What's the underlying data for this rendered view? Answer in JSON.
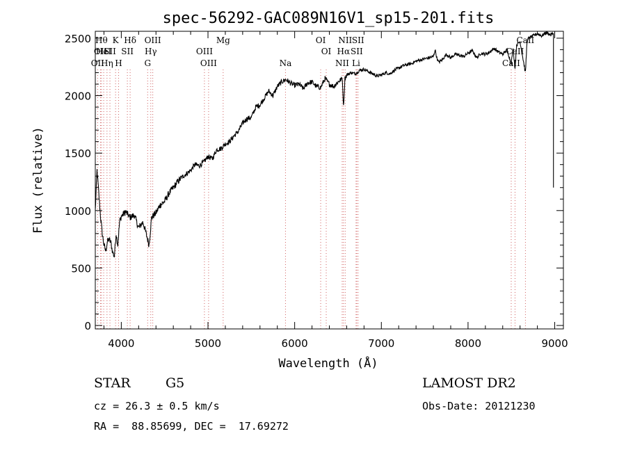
{
  "chart_data": {
    "type": "line",
    "title": "spec-56292-GAC089N16V1_sp15-201.fits",
    "xlabel": "Wavelength (Å)",
    "ylabel": "Flux (relative)",
    "xlim": [
      3700,
      9100
    ],
    "ylim": [
      -30,
      2560
    ],
    "xticks": [
      4000,
      5000,
      6000,
      7000,
      8000,
      9000
    ],
    "yticks": [
      0,
      500,
      1000,
      1500,
      2000,
      2500
    ],
    "series": [
      {
        "x": [
          3700,
          3720,
          3740,
          3760,
          3780,
          3800,
          3820,
          3840,
          3860,
          3880,
          3900,
          3920,
          3940,
          3960,
          3980,
          4000,
          4050,
          4100,
          4150,
          4200,
          4250,
          4300,
          4320,
          4350,
          4400,
          4450,
          4500,
          4550,
          4600,
          4650,
          4700,
          4750,
          4800,
          4850,
          4900,
          4950,
          5000,
          5050,
          5100,
          5150,
          5200,
          5250,
          5300,
          5350,
          5400,
          5450,
          5500,
          5550,
          5600,
          5650,
          5700,
          5750,
          5800,
          5850,
          5900,
          5950,
          6000,
          6050,
          6100,
          6150,
          6200,
          6250,
          6300,
          6350,
          6400,
          6450,
          6500,
          6550,
          6563,
          6580,
          6600,
          6650,
          6700,
          6750,
          6800,
          6850,
          6900,
          6950,
          7000,
          7050,
          7100,
          7150,
          7200,
          7250,
          7300,
          7350,
          7400,
          7450,
          7500,
          7550,
          7600,
          7620,
          7640,
          7660,
          7700,
          7750,
          7800,
          7850,
          7900,
          7950,
          8000,
          8050,
          8100,
          8150,
          8200,
          8250,
          8300,
          8350,
          8400,
          8450,
          8498,
          8520,
          8542,
          8560,
          8600,
          8662,
          8680,
          8700,
          8750,
          8800,
          8850,
          8900,
          8950,
          8980
        ],
        "y": [
          1000,
          1350,
          1150,
          950,
          800,
          700,
          650,
          730,
          750,
          720,
          640,
          600,
          800,
          700,
          900,
          950,
          990,
          940,
          960,
          850,
          900,
          760,
          700,
          940,
          980,
          1050,
          1080,
          1150,
          1200,
          1250,
          1290,
          1320,
          1350,
          1400,
          1390,
          1420,
          1470,
          1450,
          1530,
          1540,
          1580,
          1600,
          1650,
          1690,
          1760,
          1800,
          1810,
          1900,
          1920,
          1980,
          2040,
          2000,
          2080,
          2120,
          2140,
          2110,
          2090,
          2100,
          2060,
          2110,
          2120,
          2080,
          2070,
          2150,
          2100,
          2080,
          2120,
          2150,
          1900,
          2150,
          2180,
          2200,
          2190,
          2220,
          2230,
          2210,
          2190,
          2170,
          2180,
          2200,
          2190,
          2220,
          2240,
          2260,
          2270,
          2280,
          2300,
          2310,
          2320,
          2330,
          2340,
          2400,
          2330,
          2290,
          2310,
          2360,
          2330,
          2360,
          2350,
          2340,
          2370,
          2390,
          2330,
          2370,
          2360,
          2380,
          2410,
          2380,
          2360,
          2400,
          2280,
          2420,
          2230,
          2440,
          2470,
          2200,
          2470,
          2500,
          2520,
          2540,
          2520,
          2550,
          2530,
          2540
        ]
      }
    ],
    "lines": [
      {
        "wl": 3727,
        "label": "OII",
        "row": 2
      },
      {
        "wl": 3760,
        "label": "OII",
        "row": 1
      },
      {
        "wl": 3771,
        "label": "Hθ",
        "row": 0
      },
      {
        "wl": 3797,
        "label": "HeI",
        "row": 1
      },
      {
        "wl": 3835,
        "label": "Hη",
        "row": 2
      },
      {
        "wl": 3869,
        "label": "SII",
        "row": 1
      },
      {
        "wl": 3934,
        "label": "K",
        "row": 0
      },
      {
        "wl": 3969,
        "label": "H",
        "row": 2
      },
      {
        "wl": 4070,
        "label": "SII",
        "row": 1
      },
      {
        "wl": 4102,
        "label": "Hδ",
        "row": 0
      },
      {
        "wl": 4304,
        "label": "G",
        "row": 2
      },
      {
        "wl": 4340,
        "label": "Hγ",
        "row": 1
      },
      {
        "wl": 4363,
        "label": "OIII",
        "row": 0
      },
      {
        "wl": 4959,
        "label": "OIII",
        "row": 1
      },
      {
        "wl": 5007,
        "label": "OIII",
        "row": 2
      },
      {
        "wl": 5175,
        "label": "Mg",
        "row": 0
      },
      {
        "wl": 5894,
        "label": "Na",
        "row": 2
      },
      {
        "wl": 6300,
        "label": "OI",
        "row": 0
      },
      {
        "wl": 6364,
        "label": "OI",
        "row": 1
      },
      {
        "wl": 6548,
        "label": "NII",
        "row": 2
      },
      {
        "wl": 6563,
        "label": "Hα",
        "row": 1
      },
      {
        "wl": 6583,
        "label": "NII",
        "row": 0
      },
      {
        "wl": 6708,
        "label": "Li",
        "row": 2
      },
      {
        "wl": 6716,
        "label": "SII",
        "row": 1
      },
      {
        "wl": 6731,
        "label": "SII",
        "row": 0
      },
      {
        "wl": 8498,
        "label": "CaII",
        "row": 2
      },
      {
        "wl": 8542,
        "label": "CaII",
        "row": 1
      },
      {
        "wl": 8662,
        "label": "CaII",
        "row": 0
      }
    ]
  },
  "info": {
    "object_class": "STAR",
    "subclass": "G5",
    "survey": "LAMOST DR2",
    "redshift": "cz = 26.3 ± 0.5 km/s",
    "obs_date": "Obs-Date: 20121230",
    "coords": "RA =  88.85699, DEC =  17.69272"
  }
}
